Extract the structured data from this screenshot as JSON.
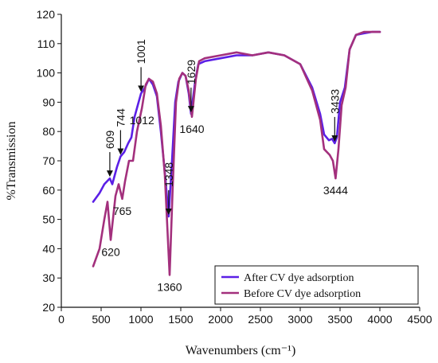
{
  "chart_data": {
    "type": "line",
    "title": "",
    "xlabel": "Wavenumbers (cm⁻¹)",
    "ylabel": "%Transmission",
    "xlim": [
      0,
      4500
    ],
    "ylim": [
      20,
      120
    ],
    "xticks": [
      0,
      500,
      1000,
      1500,
      2000,
      2500,
      3000,
      3500,
      4000,
      4500
    ],
    "yticks": [
      20,
      30,
      40,
      50,
      60,
      70,
      80,
      90,
      100,
      110,
      120
    ],
    "grid": false,
    "legend_position": "bottom-right",
    "series": [
      {
        "name": "After CV dye adsorption",
        "color": "#5b1fe6",
        "points": [
          [
            400,
            56
          ],
          [
            480,
            59
          ],
          [
            540,
            62
          ],
          [
            609,
            64
          ],
          [
            640,
            62
          ],
          [
            700,
            68
          ],
          [
            744,
            71.5
          ],
          [
            790,
            73
          ],
          [
            840,
            76
          ],
          [
            880,
            78
          ],
          [
            920,
            85
          ],
          [
            960,
            89
          ],
          [
            1001,
            93
          ],
          [
            1050,
            95
          ],
          [
            1100,
            98
          ],
          [
            1150,
            96
          ],
          [
            1200,
            92
          ],
          [
            1250,
            80
          ],
          [
            1300,
            66
          ],
          [
            1348,
            51
          ],
          [
            1390,
            70
          ],
          [
            1430,
            90
          ],
          [
            1470,
            97
          ],
          [
            1520,
            100
          ],
          [
            1560,
            99
          ],
          [
            1600,
            93
          ],
          [
            1629,
            86
          ],
          [
            1680,
            97
          ],
          [
            1720,
            103
          ],
          [
            1800,
            104
          ],
          [
            2000,
            105
          ],
          [
            2200,
            106
          ],
          [
            2400,
            106
          ],
          [
            2600,
            107
          ],
          [
            2800,
            106
          ],
          [
            3000,
            103
          ],
          [
            3150,
            95
          ],
          [
            3250,
            86
          ],
          [
            3300,
            79
          ],
          [
            3360,
            77
          ],
          [
            3400,
            77.5
          ],
          [
            3433,
            76
          ],
          [
            3460,
            78
          ],
          [
            3500,
            90
          ],
          [
            3560,
            95
          ],
          [
            3620,
            108
          ],
          [
            3700,
            113
          ],
          [
            3800,
            113.5
          ],
          [
            3900,
            114
          ],
          [
            4000,
            114
          ]
        ]
      },
      {
        "name": "Before CV dye adsorption",
        "color": "#a3307d",
        "points": [
          [
            400,
            34
          ],
          [
            480,
            40
          ],
          [
            540,
            50
          ],
          [
            580,
            56
          ],
          [
            620,
            43
          ],
          [
            680,
            58
          ],
          [
            720,
            62
          ],
          [
            765,
            57
          ],
          [
            800,
            63
          ],
          [
            850,
            70
          ],
          [
            900,
            70
          ],
          [
            950,
            80
          ],
          [
            1012,
            88
          ],
          [
            1060,
            96
          ],
          [
            1100,
            98
          ],
          [
            1150,
            97
          ],
          [
            1200,
            93
          ],
          [
            1250,
            82
          ],
          [
            1300,
            65
          ],
          [
            1360,
            31
          ],
          [
            1400,
            62
          ],
          [
            1440,
            90
          ],
          [
            1480,
            98
          ],
          [
            1520,
            100
          ],
          [
            1560,
            99
          ],
          [
            1600,
            94
          ],
          [
            1640,
            85
          ],
          [
            1690,
            98
          ],
          [
            1730,
            104
          ],
          [
            1800,
            105
          ],
          [
            2000,
            106
          ],
          [
            2200,
            107
          ],
          [
            2400,
            106
          ],
          [
            2600,
            107
          ],
          [
            2800,
            106
          ],
          [
            3000,
            103
          ],
          [
            3150,
            94
          ],
          [
            3250,
            84
          ],
          [
            3300,
            74
          ],
          [
            3370,
            72
          ],
          [
            3410,
            70
          ],
          [
            3444,
            64
          ],
          [
            3480,
            74
          ],
          [
            3520,
            89
          ],
          [
            3570,
            95
          ],
          [
            3620,
            108
          ],
          [
            3700,
            113
          ],
          [
            3800,
            114
          ],
          [
            3900,
            114
          ],
          [
            4000,
            114
          ]
        ]
      }
    ],
    "annotations": [
      {
        "label": "609",
        "x": 609,
        "y": 64,
        "series": "After CV dye adsorption",
        "position": "above"
      },
      {
        "label": "744",
        "x": 744,
        "y": 71.5,
        "series": "After CV dye adsorption",
        "position": "above"
      },
      {
        "label": "1001",
        "x": 1001,
        "y": 93,
        "series": "After CV dye adsorption",
        "position": "above"
      },
      {
        "label": "1348",
        "x": 1348,
        "y": 51,
        "series": "After CV dye adsorption",
        "position": "above"
      },
      {
        "label": "1629",
        "x": 1629,
        "y": 86,
        "series": "After CV dye adsorption",
        "position": "above"
      },
      {
        "label": "3433",
        "x": 3433,
        "y": 76,
        "series": "After CV dye adsorption",
        "position": "above"
      },
      {
        "label": "620",
        "x": 620,
        "y": 43,
        "series": "Before CV dye adsorption",
        "position": "below"
      },
      {
        "label": "765",
        "x": 765,
        "y": 57,
        "series": "Before CV dye adsorption",
        "position": "below"
      },
      {
        "label": "1012",
        "x": 1012,
        "y": 88,
        "series": "Before CV dye adsorption",
        "position": "below"
      },
      {
        "label": "1360",
        "x": 1360,
        "y": 31,
        "series": "Before CV dye adsorption",
        "position": "below"
      },
      {
        "label": "1640",
        "x": 1640,
        "y": 85,
        "series": "Before CV dye adsorption",
        "position": "below"
      },
      {
        "label": "3444",
        "x": 3444,
        "y": 64,
        "series": "Before CV dye adsorption",
        "position": "below"
      }
    ]
  }
}
